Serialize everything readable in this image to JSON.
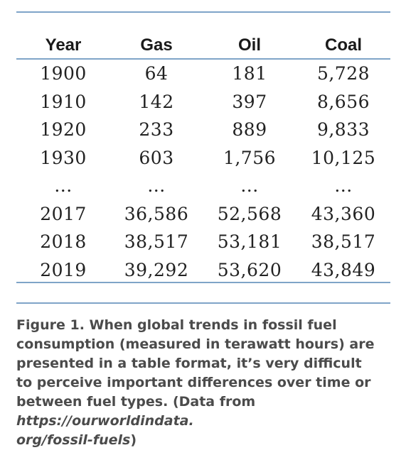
{
  "table": {
    "headers": [
      "Year",
      "Gas",
      "Oil",
      "Coal"
    ],
    "rows": [
      [
        "1900",
        "64",
        "181",
        "5,728"
      ],
      [
        "1910",
        "142",
        "397",
        "8,656"
      ],
      [
        "1920",
        "233",
        "889",
        "9,833"
      ],
      [
        "1930",
        "603",
        "1,756",
        "10,125"
      ],
      [
        "...",
        "...",
        "...",
        "..."
      ],
      [
        "2017",
        "36,586",
        "52,568",
        "43,360"
      ],
      [
        "2018",
        "38,517",
        "53,181",
        "38,517"
      ],
      [
        "2019",
        "39,292",
        "53,620",
        "43,849"
      ]
    ]
  },
  "caption": {
    "lines": [
      "Figure 1. When global trends in fossil fuel",
      "consumption (measured in terawatt hours) are",
      "presented in a table format, it’s very difficult",
      "to perceive important differences over time or"
    ],
    "line5_text": "between fuel types. (Data from ",
    "link_part1": "https://ourworldindata.",
    "link_part2": "org/fossil-fuels",
    "closing": ")"
  },
  "colors": {
    "rule": "#7fa4c8",
    "caption_text": "#4b4b4b",
    "table_text": "#222222"
  }
}
